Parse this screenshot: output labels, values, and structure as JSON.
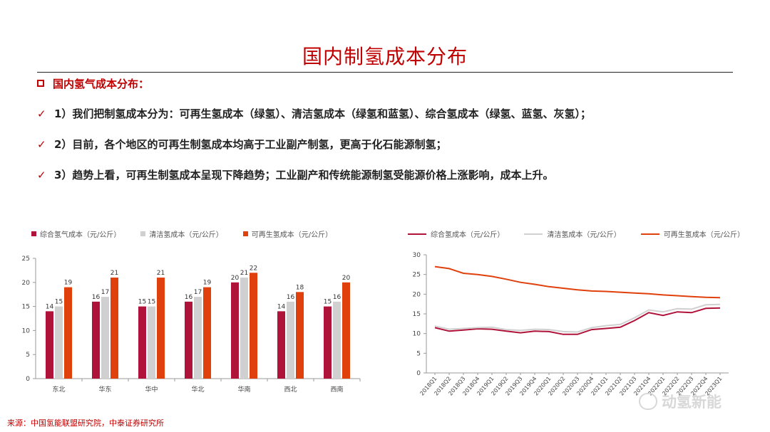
{
  "title": "国内制氢成本分布",
  "section_label": "国内氢气成本分布：",
  "points": [
    "1）我们把制氢成本分为：可再生氢成本（绿氢）、清洁氢成本（绿氢和蓝氢）、综合氢成本（绿氢、蓝氢、灰氢）；",
    "2）目前，各个地区的可再生制氢成本均高于工业副产制氢，更高于化石能源制氢；",
    "3）趋势上看，可再生制氢成本呈现下降趋势；工业副产和传统能源制氢受能源价格上涨影响，成本上升。"
  ],
  "check_symbol": "✓",
  "source": "来源：中国氢能联盟研究院，中泰证券研究所",
  "watermark": "动氢新能",
  "colors": {
    "accent": "#c00000",
    "series1": "#b0133a",
    "series2": "#d0d0d0",
    "series3": "#e0400c"
  },
  "chart_data": [
    {
      "type": "bar",
      "categories": [
        "东北",
        "华东",
        "华中",
        "华北",
        "华南",
        "西北",
        "西南"
      ],
      "series": [
        {
          "name": "综合氢气成本（元/公斤）",
          "values": [
            14,
            16,
            15,
            16,
            20,
            14,
            15
          ]
        },
        {
          "name": "清洁氢成本（元/公斤）",
          "values": [
            15,
            17,
            15,
            17,
            21,
            16,
            16
          ]
        },
        {
          "name": "可再生氢成本（元/公斤）",
          "values": [
            19,
            21,
            21,
            19,
            22,
            18,
            20
          ]
        }
      ],
      "data_labels": [
        [
          "14",
          "16",
          "15",
          "16",
          "20",
          "14",
          "15"
        ],
        [
          "15",
          "17",
          "15",
          "17",
          "21",
          "16",
          "16"
        ],
        [
          "19",
          "21",
          "21",
          "19",
          "22",
          "18",
          "20"
        ]
      ],
      "ylim": [
        0,
        25
      ],
      "yticks": [
        "0",
        "5",
        "10",
        "15",
        "20",
        "25"
      ],
      "legend": "top"
    },
    {
      "type": "line",
      "x": [
        "2018Q1",
        "2018Q2",
        "2018Q3",
        "2018Q4",
        "2019Q1",
        "2019Q2",
        "2019Q3",
        "2019Q4",
        "2020Q1",
        "2020Q2",
        "2020Q3",
        "2020Q4",
        "2021Q1",
        "2021Q2",
        "2021Q3",
        "2021Q4",
        "2022Q1",
        "2022Q2",
        "2022Q3",
        "2022Q4",
        "2023Q1"
      ],
      "series": [
        {
          "name": "综合氢成本（元/公斤）",
          "values": [
            11.5,
            10.6,
            10.9,
            11.2,
            11.1,
            10.6,
            10.2,
            10.6,
            10.5,
            9.8,
            9.8,
            11.0,
            11.3,
            11.6,
            13.3,
            15.3,
            14.6,
            15.5,
            15.3,
            16.4,
            16.5
          ]
        },
        {
          "name": "清洁氢成本（元/公斤）",
          "values": [
            11.9,
            11.1,
            11.3,
            11.5,
            11.6,
            11.0,
            10.8,
            11.1,
            11.0,
            10.5,
            10.4,
            11.5,
            12.0,
            12.3,
            14.0,
            16.0,
            15.5,
            16.3,
            16.2,
            17.3,
            17.4
          ]
        },
        {
          "name": "可再生氢成本（元/公斤）",
          "values": [
            27.0,
            26.5,
            25.3,
            25.0,
            24.5,
            23.8,
            23.0,
            22.5,
            21.9,
            21.5,
            21.1,
            20.8,
            20.7,
            20.5,
            20.3,
            20.1,
            19.8,
            19.6,
            19.4,
            19.2,
            19.1
          ]
        }
      ],
      "ylim": [
        0,
        30
      ],
      "yticks": [
        "0",
        "5",
        "10",
        "15",
        "20",
        "25",
        "30"
      ],
      "legend": "top"
    }
  ]
}
